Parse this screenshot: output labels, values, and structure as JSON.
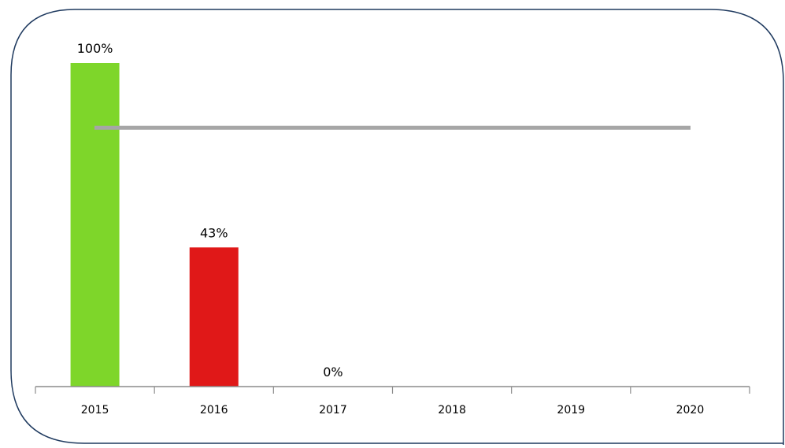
{
  "chart_data": {
    "type": "bar",
    "categories": [
      "2015",
      "2016",
      "2017",
      "2018",
      "2019",
      "2020"
    ],
    "values": [
      100,
      43,
      0,
      null,
      null,
      null
    ],
    "data_labels": [
      "100%",
      "43%",
      "0%",
      "",
      "",
      ""
    ],
    "bar_colors": [
      "#7ed62a",
      "#e01818",
      "#e01818",
      "",
      "",
      ""
    ],
    "target_line": {
      "value": 80,
      "color": "#a6a6a6"
    },
    "ylim": [
      0,
      100
    ],
    "grid": false,
    "legend": "none",
    "title": "",
    "xlabel": "",
    "ylabel": ""
  },
  "colors": {
    "frame_border": "#1f3a5f",
    "axis": "#8c8c8c",
    "text": "#000000"
  }
}
